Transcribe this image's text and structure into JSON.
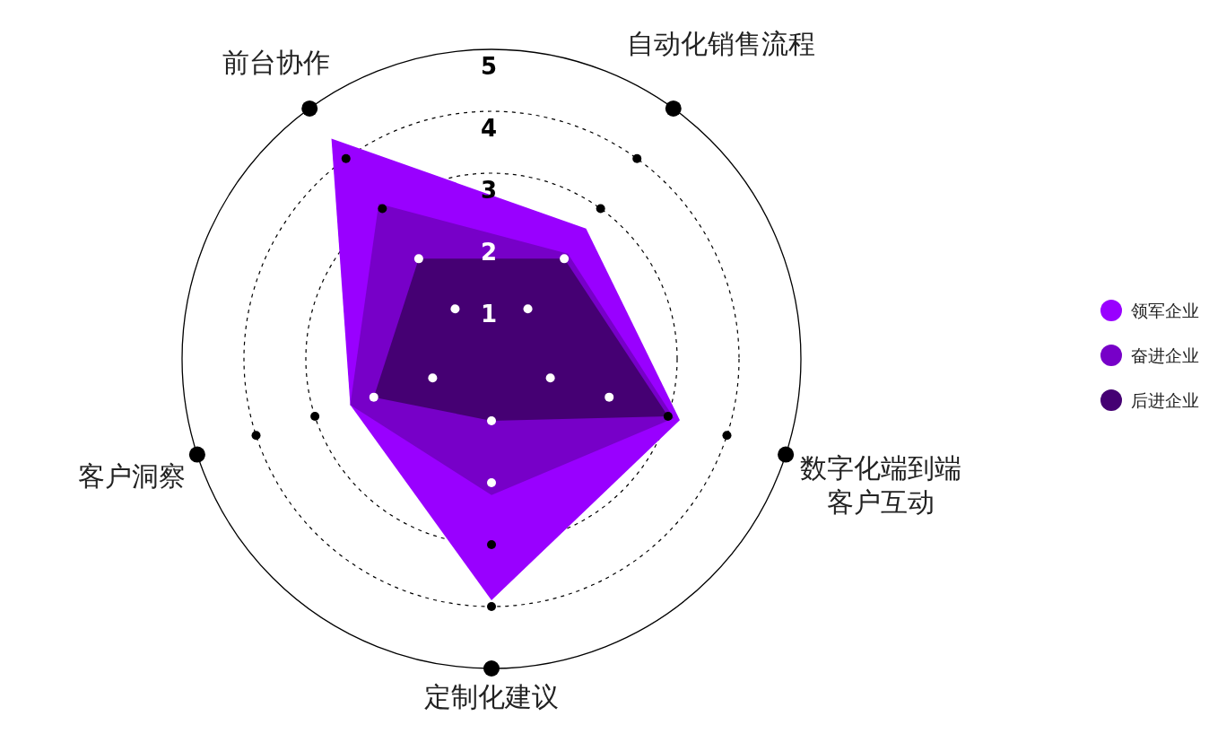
{
  "chart_data": {
    "type": "radar",
    "categories": [
      "自动化销售流程",
      "数字化端到端客户互动",
      "定制化建议",
      "客户洞察",
      "前台协作"
    ],
    "series": [
      {
        "name": "领军企业",
        "color": "#9900ff",
        "values": [
          2.6,
          3.2,
          3.9,
          2.4,
          4.4
        ]
      },
      {
        "name": "奋进企业",
        "color": "#7700c8",
        "values": [
          2.1,
          3.1,
          2.2,
          2.4,
          3.1
        ]
      },
      {
        "name": "后进企业",
        "color": "#450073",
        "values": [
          2.0,
          3.0,
          1.0,
          2.0,
          2.0
        ]
      }
    ],
    "ylim": [
      0,
      5
    ],
    "yticks": [
      1,
      2,
      3,
      4,
      5
    ],
    "legend": "right",
    "grid": true
  }
}
